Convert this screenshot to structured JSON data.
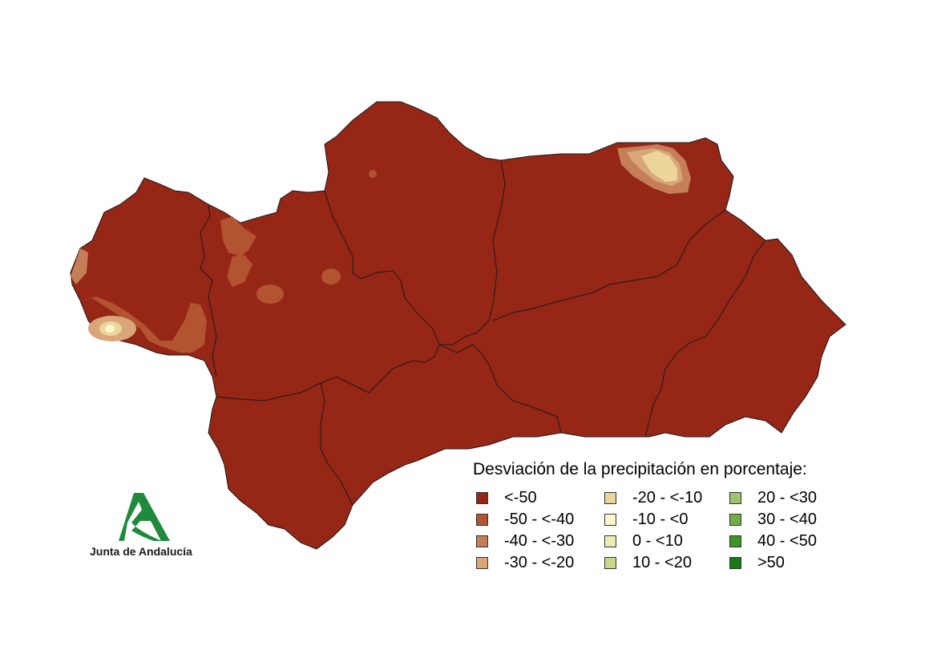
{
  "legend": {
    "title": "Desviación de la precipitación en porcentaje:",
    "items": [
      {
        "label": "<-50",
        "color": "#962616"
      },
      {
        "label": "-50 - <-40",
        "color": "#b25331"
      },
      {
        "label": "-40 - <-30",
        "color": "#c57f58"
      },
      {
        "label": "-30 - <-20",
        "color": "#d9a67b"
      },
      {
        "label": "-20 - <-10",
        "color": "#ecd59a"
      },
      {
        "label": "-10 - <0",
        "color": "#fbf6cc"
      },
      {
        "label": "0 - <10",
        "color": "#ecebb3"
      },
      {
        "label": "10 - <20",
        "color": "#c6d88a"
      },
      {
        "label": "20 - <30",
        "color": "#9dc46f"
      },
      {
        "label": "30 - <40",
        "color": "#6fae45"
      },
      {
        "label": "40 - <50",
        "color": "#3f9428"
      },
      {
        "label": ">50",
        "color": "#177a17"
      }
    ]
  },
  "logo": {
    "text": "Junta de Andalucía",
    "green": "#1f8a3c"
  },
  "map": {
    "region_color": "#962616",
    "border_color": "#1a1a1a"
  }
}
